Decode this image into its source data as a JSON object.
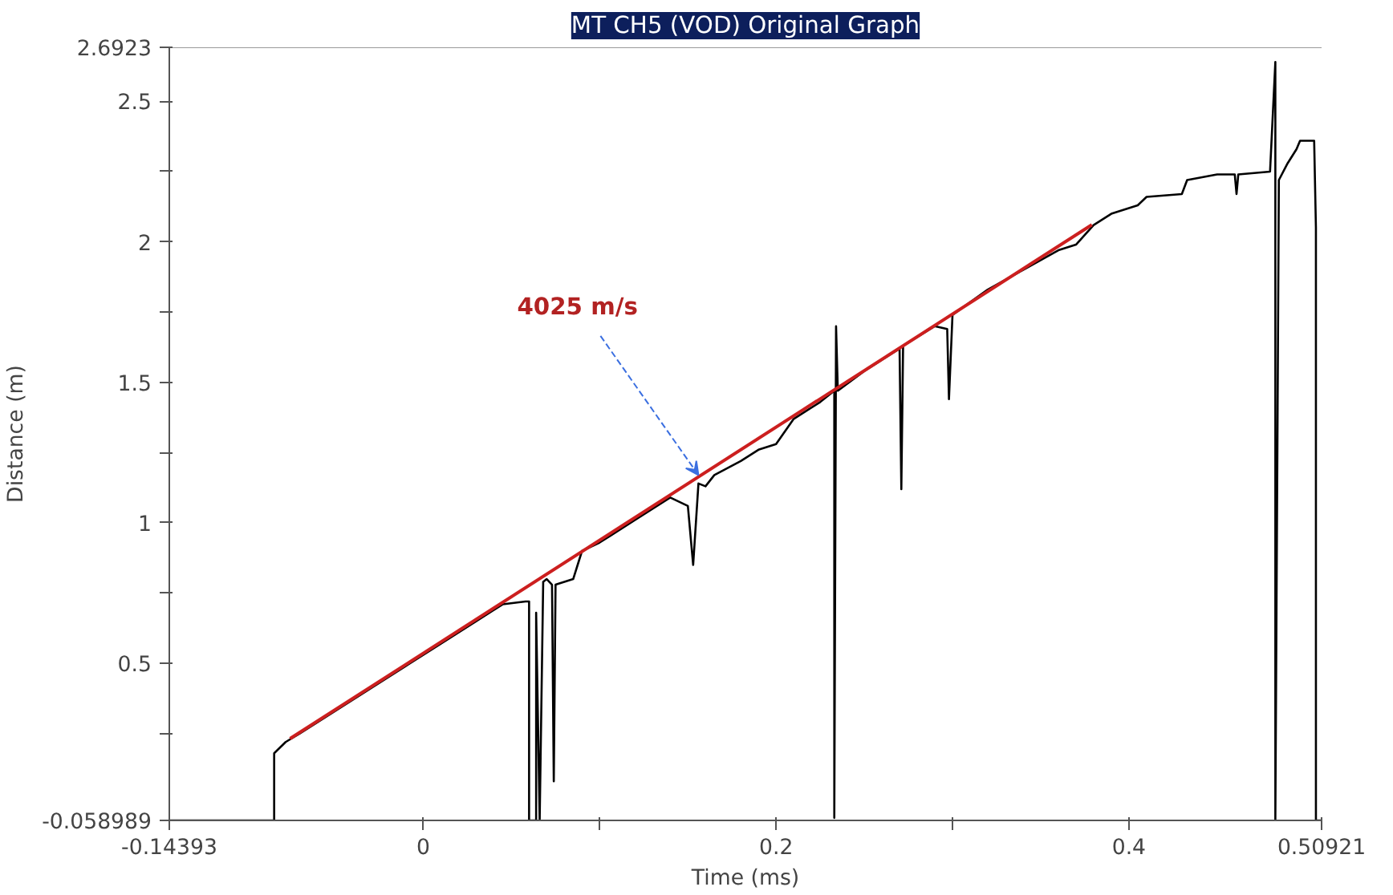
{
  "chart_data": {
    "type": "line",
    "title": "MT CH5 (VOD) Original Graph",
    "xlabel": "Time (ms)",
    "ylabel": "Distance (m)",
    "xlim": [
      -0.14393,
      0.50921
    ],
    "ylim": [
      -0.058989,
      2.6923
    ],
    "xticks": [
      -0.14393,
      0,
      {
        "value": 0.1,
        "label": null
      },
      0.2,
      {
        "value": 0.3,
        "label": null
      },
      0.4,
      0.50921
    ],
    "yticks": [
      -0.058989,
      {
        "value": 0.25,
        "label": null
      },
      0.5,
      {
        "value": 0.75,
        "label": null
      },
      1,
      {
        "value": 1.25,
        "label": null
      },
      1.5,
      {
        "value": 1.75,
        "label": null
      },
      2,
      {
        "value": 2.25,
        "label": null
      },
      2.5,
      2.6923
    ],
    "grid": false,
    "marker": "none",
    "line_style": "solid",
    "annotations": [
      {
        "text": "4025 m/s",
        "x": 0.156,
        "y": 1.17
      }
    ],
    "series": [
      {
        "color": "#000000",
        "x": [
          -0.14393,
          -0.0845,
          -0.0845,
          -0.078,
          -0.07,
          -0.05,
          -0.03,
          -0.01,
          0.01,
          0.03,
          0.045,
          0.058,
          0.06,
          0.06,
          0.064,
          0.064,
          0.066,
          0.068,
          0.07,
          0.073,
          0.074,
          0.075,
          0.085,
          0.09,
          0.1,
          0.12,
          0.14,
          0.15,
          0.153,
          0.156,
          0.16,
          0.165,
          0.18,
          0.19,
          0.2,
          0.21,
          0.225,
          0.233,
          0.233,
          0.234,
          0.235,
          0.25,
          0.27,
          0.271,
          0.272,
          0.29,
          0.297,
          0.298,
          0.3,
          0.32,
          0.34,
          0.36,
          0.37,
          0.38,
          0.39,
          0.405,
          0.41,
          0.43,
          0.433,
          0.45,
          0.46,
          0.461,
          0.462,
          0.48,
          0.483,
          0.483,
          0.485,
          0.49,
          0.495,
          0.497,
          0.505,
          0.506,
          0.506,
          0.50921
        ],
        "values": [
          -0.058989,
          -0.058989,
          0.18,
          0.22,
          0.25,
          0.33,
          0.41,
          0.49,
          0.57,
          0.65,
          0.71,
          0.72,
          0.72,
          -0.058989,
          -0.058989,
          0.68,
          -0.058989,
          0.79,
          0.8,
          0.78,
          0.08,
          0.78,
          0.8,
          0.9,
          0.93,
          1.01,
          1.09,
          1.06,
          0.85,
          1.14,
          1.13,
          1.17,
          1.22,
          1.26,
          1.28,
          1.37,
          1.43,
          1.47,
          -0.05,
          1.7,
          1.47,
          1.54,
          1.62,
          1.12,
          1.63,
          1.7,
          1.69,
          1.44,
          1.74,
          1.83,
          1.9,
          1.97,
          1.99,
          2.06,
          2.1,
          2.13,
          2.16,
          2.17,
          2.22,
          2.24,
          2.24,
          2.17,
          2.24,
          2.25,
          2.64,
          -0.058989,
          2.22,
          2.28,
          2.33,
          2.36,
          2.36,
          2.05,
          -0.058989,
          -0.058989
        ]
      },
      {
        "color": "#cc1f1f",
        "x": [
          -0.0755,
          0.379
        ],
        "values": [
          0.232,
          2.061
        ]
      }
    ]
  }
}
